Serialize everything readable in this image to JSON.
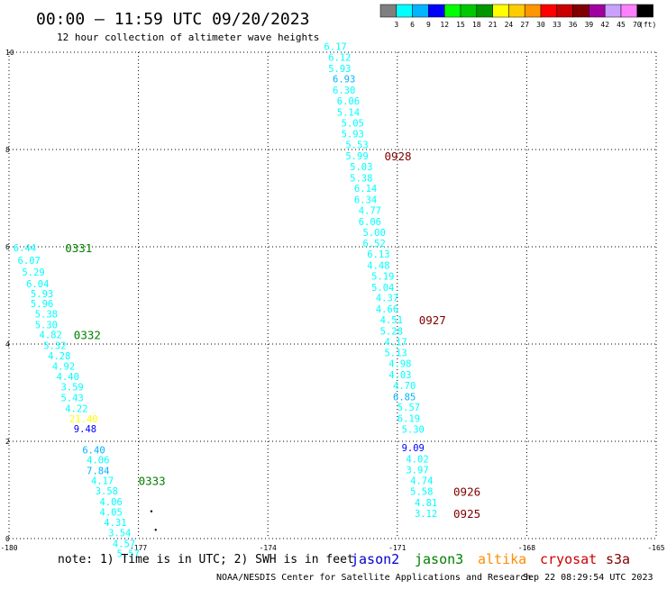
{
  "header": {
    "title": "00:00 – 11:59 UTC 09/20/2023",
    "subtitle": "12 hour collection of altimeter wave heights"
  },
  "legend": {
    "unit": "(ft)",
    "bins": [
      {
        "label": "3",
        "color": "#7f7f7f"
      },
      {
        "label": "6",
        "color": "#00ffff"
      },
      {
        "label": "9",
        "color": "#00b4ff"
      },
      {
        "label": "12",
        "color": "#0000ff"
      },
      {
        "label": "15",
        "color": "#00ff00"
      },
      {
        "label": "18",
        "color": "#00c800"
      },
      {
        "label": "21",
        "color": "#009600"
      },
      {
        "label": "24",
        "color": "#ffff00"
      },
      {
        "label": "27",
        "color": "#ffcc00"
      },
      {
        "label": "30",
        "color": "#ff9600"
      },
      {
        "label": "33",
        "color": "#ff0000"
      },
      {
        "label": "36",
        "color": "#c80000"
      },
      {
        "label": "39",
        "color": "#800000"
      },
      {
        "label": "42",
        "color": "#a000a0"
      },
      {
        "label": "45",
        "color": "#c8a0ff"
      },
      {
        "label": "70",
        "color": "#ff80ff"
      },
      {
        "label": "",
        "color": "#000000"
      }
    ]
  },
  "footer": {
    "note": "note: 1) Time is in UTC; 2) SWH is in feet",
    "credit": "NOAA/NESDIS Center for Satellite Applications and Research",
    "timestamp": "Sep 22 08:29:54 UTC 2023",
    "satellites": [
      {
        "name": "jason2",
        "color": "#0000cc"
      },
      {
        "name": "jason3",
        "color": "#008000"
      },
      {
        "name": "altika",
        "color": "#ff8c00"
      },
      {
        "name": "cryosat",
        "color": "#cc0000"
      },
      {
        "name": "s3a",
        "color": "#800000"
      }
    ]
  },
  "chart_data": {
    "type": "scatter",
    "xlim": [
      -180,
      -165
    ],
    "ylim": [
      0,
      10
    ],
    "x_ticks": [
      -180,
      -177,
      -174,
      -171,
      -168,
      -165
    ],
    "x_tick_labels": [
      "-180",
      "-177",
      "-174",
      "-171",
      "-168",
      "-165"
    ],
    "y_ticks": [
      0,
      2,
      4,
      6,
      8,
      10
    ],
    "y_tick_labels": [
      "0",
      "2",
      "4",
      "6",
      "8",
      "10"
    ],
    "grid": true,
    "series": [
      {
        "track": "A",
        "points": [
          {
            "x": -179.9,
            "y": 5.98,
            "v": "6.44",
            "c": "#00ffff"
          },
          {
            "x": -179.8,
            "y": 5.72,
            "v": "6.07",
            "c": "#00ffff"
          },
          {
            "x": -179.7,
            "y": 5.48,
            "v": "5.29",
            "c": "#00ffff"
          },
          {
            "x": -179.6,
            "y": 5.24,
            "v": "6.04",
            "c": "#00ffff"
          },
          {
            "x": -179.5,
            "y": 5.04,
            "v": "5.93",
            "c": "#00ffff"
          },
          {
            "x": -179.5,
            "y": 4.83,
            "v": "5.96",
            "c": "#00ffff"
          },
          {
            "x": -179.4,
            "y": 4.62,
            "v": "5.38",
            "c": "#00ffff"
          },
          {
            "x": -179.4,
            "y": 4.4,
            "v": "5.30",
            "c": "#00ffff"
          },
          {
            "x": -179.3,
            "y": 4.19,
            "v": "4.82",
            "c": "#00ffff"
          },
          {
            "x": -179.2,
            "y": 3.97,
            "v": "5.32",
            "c": "#00ffff"
          },
          {
            "x": -179.1,
            "y": 3.76,
            "v": "4.28",
            "c": "#00ffff"
          },
          {
            "x": -179.0,
            "y": 3.55,
            "v": "4.92",
            "c": "#00ffff"
          },
          {
            "x": -178.9,
            "y": 3.33,
            "v": "4.40",
            "c": "#00ffff"
          },
          {
            "x": -178.8,
            "y": 3.12,
            "v": "3.59",
            "c": "#00ffff"
          },
          {
            "x": -178.8,
            "y": 2.9,
            "v": "5.43",
            "c": "#00ffff"
          },
          {
            "x": -178.7,
            "y": 2.68,
            "v": "4.22",
            "c": "#00ffff"
          },
          {
            "x": -178.6,
            "y": 2.46,
            "v": "21.40",
            "c": "#ffff00"
          },
          {
            "x": -178.5,
            "y": 2.26,
            "v": "9.48",
            "c": "#0000ff"
          },
          {
            "x": -178.3,
            "y": 1.82,
            "v": "6.40",
            "c": "#00b4ff"
          },
          {
            "x": -178.2,
            "y": 1.62,
            "v": "4.06",
            "c": "#00ffff"
          },
          {
            "x": -178.2,
            "y": 1.4,
            "v": "7.84",
            "c": "#00b4ff"
          },
          {
            "x": -178.1,
            "y": 1.19,
            "v": "4.17",
            "c": "#00ffff"
          },
          {
            "x": -178.0,
            "y": 0.98,
            "v": "3.58",
            "c": "#00ffff"
          },
          {
            "x": -177.9,
            "y": 0.76,
            "v": "4.06",
            "c": "#00ffff"
          },
          {
            "x": -177.9,
            "y": 0.55,
            "v": "4.05",
            "c": "#00ffff"
          },
          {
            "x": -177.8,
            "y": 0.33,
            "v": "4.31",
            "c": "#00ffff"
          },
          {
            "x": -177.7,
            "y": 0.12,
            "v": "3.54",
            "c": "#00ffff"
          },
          {
            "x": -177.6,
            "y": -0.1,
            "v": "4.57",
            "c": "#00ffff"
          },
          {
            "x": -177.5,
            "y": -0.31,
            "v": "5.57",
            "c": "#00ffff"
          }
        ]
      },
      {
        "track": "B",
        "points": [
          {
            "x": -172.7,
            "y": 10.12,
            "v": "6.17",
            "c": "#00ffff"
          },
          {
            "x": -172.6,
            "y": 9.9,
            "v": "6.12",
            "c": "#00ffff"
          },
          {
            "x": -172.6,
            "y": 9.67,
            "v": "5.93",
            "c": "#00ffff"
          },
          {
            "x": -172.5,
            "y": 9.45,
            "v": "6.93",
            "c": "#00b4ff"
          },
          {
            "x": -172.5,
            "y": 9.22,
            "v": "6.30",
            "c": "#00ffff"
          },
          {
            "x": -172.4,
            "y": 9.0,
            "v": "6.06",
            "c": "#00ffff"
          },
          {
            "x": -172.4,
            "y": 8.77,
            "v": "5.14",
            "c": "#00ffff"
          },
          {
            "x": -172.3,
            "y": 8.55,
            "v": "5.05",
            "c": "#00ffff"
          },
          {
            "x": -172.3,
            "y": 8.32,
            "v": "5.93",
            "c": "#00ffff"
          },
          {
            "x": -172.2,
            "y": 8.1,
            "v": "5.53",
            "c": "#00ffff"
          },
          {
            "x": -172.2,
            "y": 7.87,
            "v": "5.99",
            "c": "#00ffff"
          },
          {
            "x": -172.1,
            "y": 7.65,
            "v": "5.03",
            "c": "#00ffff"
          },
          {
            "x": -172.1,
            "y": 7.42,
            "v": "5.38",
            "c": "#00ffff"
          },
          {
            "x": -172.0,
            "y": 7.2,
            "v": "6.14",
            "c": "#00ffff"
          },
          {
            "x": -172.0,
            "y": 6.97,
            "v": "6.34",
            "c": "#00ffff"
          },
          {
            "x": -171.9,
            "y": 6.75,
            "v": "4.77",
            "c": "#00ffff"
          },
          {
            "x": -171.9,
            "y": 6.52,
            "v": "6.06",
            "c": "#00ffff"
          },
          {
            "x": -171.8,
            "y": 6.3,
            "v": "5.00",
            "c": "#00ffff"
          },
          {
            "x": -171.8,
            "y": 6.07,
            "v": "6.52",
            "c": "#00ffff"
          },
          {
            "x": -171.7,
            "y": 5.85,
            "v": "6.13",
            "c": "#00ffff"
          },
          {
            "x": -171.7,
            "y": 5.62,
            "v": "4.48",
            "c": "#00ffff"
          },
          {
            "x": -171.6,
            "y": 5.4,
            "v": "5.19",
            "c": "#00ffff"
          },
          {
            "x": -171.6,
            "y": 5.17,
            "v": "5.04",
            "c": "#00ffff"
          },
          {
            "x": -171.5,
            "y": 4.95,
            "v": "4.37",
            "c": "#00ffff"
          },
          {
            "x": -171.5,
            "y": 4.72,
            "v": "4.66",
            "c": "#00ffff"
          },
          {
            "x": -171.4,
            "y": 4.5,
            "v": "4.51",
            "c": "#00ffff"
          },
          {
            "x": -171.4,
            "y": 4.27,
            "v": "5.28",
            "c": "#00ffff"
          },
          {
            "x": -171.3,
            "y": 4.05,
            "v": "4.17",
            "c": "#00ffff"
          },
          {
            "x": -171.3,
            "y": 3.82,
            "v": "5.13",
            "c": "#00ffff"
          },
          {
            "x": -171.2,
            "y": 3.6,
            "v": "4.98",
            "c": "#00ffff"
          },
          {
            "x": -171.2,
            "y": 3.37,
            "v": "4.03",
            "c": "#00ffff"
          },
          {
            "x": -171.1,
            "y": 3.15,
            "v": "4.70",
            "c": "#00ffff"
          },
          {
            "x": -171.1,
            "y": 2.92,
            "v": "6.85",
            "c": "#00b4ff"
          },
          {
            "x": -171.0,
            "y": 2.7,
            "v": "5.57",
            "c": "#00ffff"
          },
          {
            "x": -171.0,
            "y": 2.47,
            "v": "6.19",
            "c": "#00ffff"
          },
          {
            "x": -170.9,
            "y": 2.25,
            "v": "5.30",
            "c": "#00ffff"
          },
          {
            "x": -170.9,
            "y": 1.87,
            "v": "9.09",
            "c": "#0000ff"
          },
          {
            "x": -170.8,
            "y": 1.64,
            "v": "4.02",
            "c": "#00ffff"
          },
          {
            "x": -170.8,
            "y": 1.42,
            "v": "3.97",
            "c": "#00ffff"
          },
          {
            "x": -170.7,
            "y": 1.19,
            "v": "4.74",
            "c": "#00ffff"
          },
          {
            "x": -170.7,
            "y": 0.97,
            "v": "5.58",
            "c": "#00ffff"
          },
          {
            "x": -170.6,
            "y": 0.74,
            "v": "4.81",
            "c": "#00ffff"
          },
          {
            "x": -170.6,
            "y": 0.52,
            "v": "3.12",
            "c": "#00ffff"
          }
        ]
      }
    ],
    "time_labels": [
      {
        "x": -178.7,
        "y": 5.98,
        "label": "0331",
        "c": "#008000"
      },
      {
        "x": -178.5,
        "y": 4.19,
        "label": "0332",
        "c": "#008000"
      },
      {
        "x": -177.0,
        "y": 1.19,
        "label": "0333",
        "c": "#008000"
      },
      {
        "x": -171.3,
        "y": 7.87,
        "label": "0928",
        "c": "#800000"
      },
      {
        "x": -170.5,
        "y": 4.5,
        "label": "0927",
        "c": "#800000"
      },
      {
        "x": -169.7,
        "y": 0.97,
        "label": "0926",
        "c": "#800000"
      },
      {
        "x": -169.7,
        "y": 0.52,
        "label": "0925",
        "c": "#800000"
      }
    ],
    "markers": [
      {
        "x": -176.7,
        "y": 0.56
      },
      {
        "x": -176.6,
        "y": 0.18
      }
    ]
  }
}
